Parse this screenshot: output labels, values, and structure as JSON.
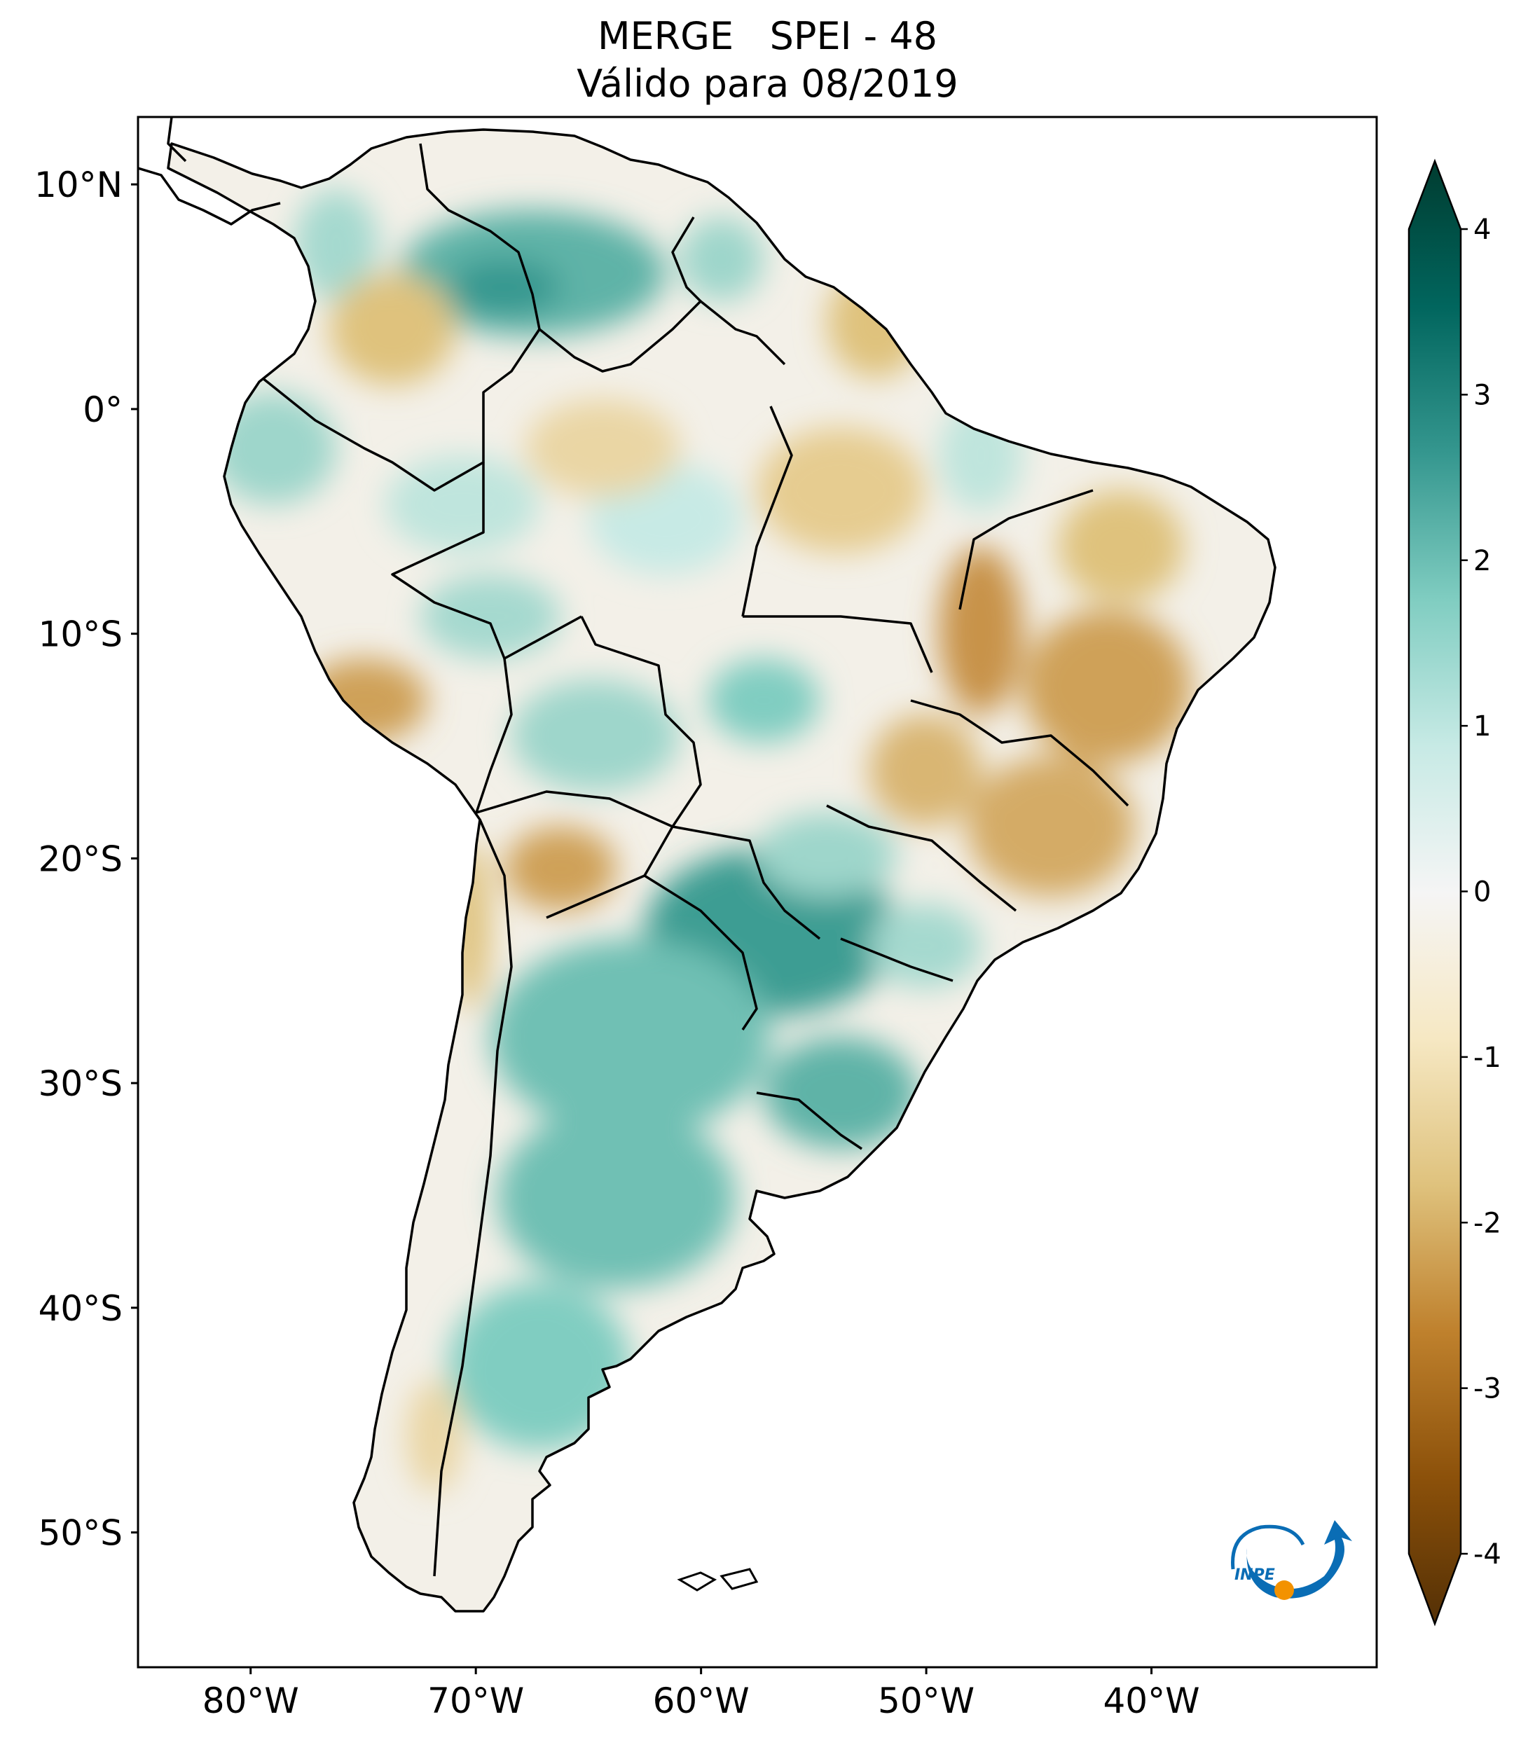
{
  "title": {
    "line1": "MERGE   SPEI - 48",
    "line2": "Válido para 08/2019"
  },
  "map": {
    "lon_range": [
      -85,
      -30
    ],
    "lat_range": [
      -56,
      13
    ],
    "lat_ticks": [
      {
        "value": 10,
        "label": "10°N"
      },
      {
        "value": 0,
        "label": "0°"
      },
      {
        "value": -10,
        "label": "10°S"
      },
      {
        "value": -20,
        "label": "20°S"
      },
      {
        "value": -30,
        "label": "30°S"
      },
      {
        "value": -40,
        "label": "40°S"
      },
      {
        "value": -50,
        "label": "50°S"
      }
    ],
    "lon_ticks": [
      {
        "value": -80,
        "label": "80°W"
      },
      {
        "value": -70,
        "label": "70°W"
      },
      {
        "value": -60,
        "label": "60°W"
      },
      {
        "value": -50,
        "label": "50°W"
      },
      {
        "value": -40,
        "label": "40°W"
      }
    ]
  },
  "colorbar": {
    "min": -4,
    "max": 4,
    "ticks": [
      {
        "value": 4,
        "label": "4"
      },
      {
        "value": 3,
        "label": "3"
      },
      {
        "value": 2,
        "label": "2"
      },
      {
        "value": 1,
        "label": "1"
      },
      {
        "value": 0,
        "label": "0"
      },
      {
        "value": -1,
        "label": "-1"
      },
      {
        "value": -2,
        "label": "-2"
      },
      {
        "value": -3,
        "label": "-3"
      },
      {
        "value": -4,
        "label": "-4"
      }
    ],
    "colors": {
      "wet_extreme": "#003c30",
      "wet_strong": "#01665e",
      "wet_moderate": "#35978f",
      "wet_mild": "#80cdc1",
      "wet_light": "#c7eae5",
      "neutral": "#f5f5f5",
      "dry_light": "#f6e8c3",
      "dry_mild": "#dfc27d",
      "dry_moderate": "#bf812d",
      "dry_strong": "#8c510a",
      "dry_extreme": "#543005"
    }
  },
  "logo": {
    "text": "INPE",
    "colors": {
      "blue": "#0a6db5",
      "orange": "#f39200"
    }
  }
}
